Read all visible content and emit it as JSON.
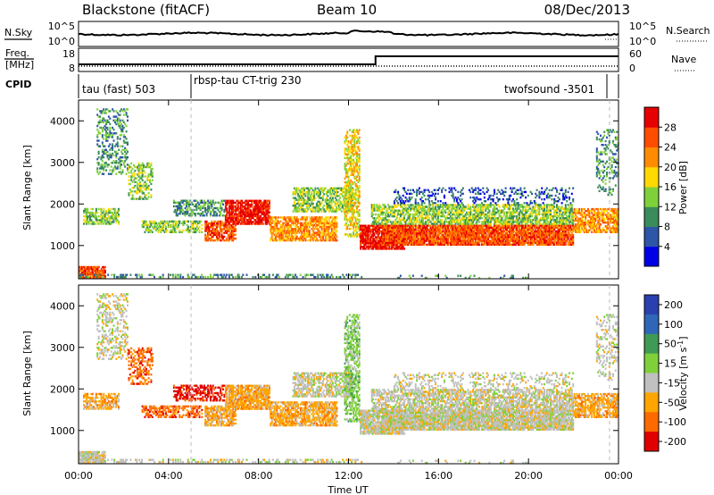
{
  "header": {
    "title_left": "Blackstone (fitACF)",
    "title_center": "Beam 10",
    "title_right": "08/Dec/2013"
  },
  "sky_panel": {
    "left_label": "N.Sky",
    "right_label": "N.Search",
    "yticks_left": [
      "10^5",
      "10^0"
    ],
    "yticks_right": [
      "10^5",
      "10^0"
    ]
  },
  "freq_panel": {
    "left_label_1": "Freq.",
    "left_label_2": "[MHz]",
    "right_label": "Nave",
    "yticks_left": [
      "18",
      "8"
    ],
    "yticks_right": [
      "60",
      "0"
    ]
  },
  "cpid_panel": {
    "label": "CPID",
    "entries": [
      {
        "hour": 0.05,
        "text": "tau (fast) 503"
      },
      {
        "hour": 5.0,
        "text": "rbsp-tau CT-trig 230"
      },
      {
        "hour": 19.5,
        "text": "twofsound -3501"
      }
    ]
  },
  "chart_data": [
    {
      "type": "heatmap",
      "title": "Power",
      "ylabel": "Slant Range [km]",
      "xlim": [
        0,
        24
      ],
      "ylim": [
        200,
        4500
      ],
      "yticks": [
        1000,
        2000,
        3000,
        4000
      ],
      "colorbar": {
        "label": "Power [dB]",
        "ticks": [
          4,
          8,
          12,
          16,
          20,
          24,
          28
        ],
        "range": [
          0,
          32
        ],
        "colors": [
          "#0000e6",
          "#2d55a8",
          "#3a8c5a",
          "#7fd13a",
          "#ffd900",
          "#ff8c00",
          "#ff4d00",
          "#e60000"
        ]
      }
    },
    {
      "type": "heatmap",
      "title": "Velocity",
      "ylabel": "Slant Range [km]",
      "xlabel": "Time UT",
      "xlim": [
        0,
        24
      ],
      "ylim": [
        200,
        4500
      ],
      "yticks": [
        1000,
        2000,
        3000,
        4000
      ],
      "xticks": [
        {
          "hour": 0,
          "label": "00:00"
        },
        {
          "hour": 4,
          "label": "04:00"
        },
        {
          "hour": 8,
          "label": "08:00"
        },
        {
          "hour": 12,
          "label": "12:00"
        },
        {
          "hour": 16,
          "label": "16:00"
        },
        {
          "hour": 20,
          "label": "20:00"
        },
        {
          "hour": 24,
          "label": "00:00"
        }
      ],
      "colorbar": {
        "label": "Velocity [m s",
        "label_sup": "-1",
        "label_end": "]",
        "ticks": [
          "200",
          "100",
          "50",
          "15",
          "-15",
          "-50",
          "-100",
          "-200"
        ],
        "colors": [
          "#2a3fb0",
          "#2f66b8",
          "#3f9a55",
          "#7fd13a",
          "#c0c0c0",
          "#ffa500",
          "#ff6a00",
          "#e00000"
        ]
      }
    }
  ]
}
